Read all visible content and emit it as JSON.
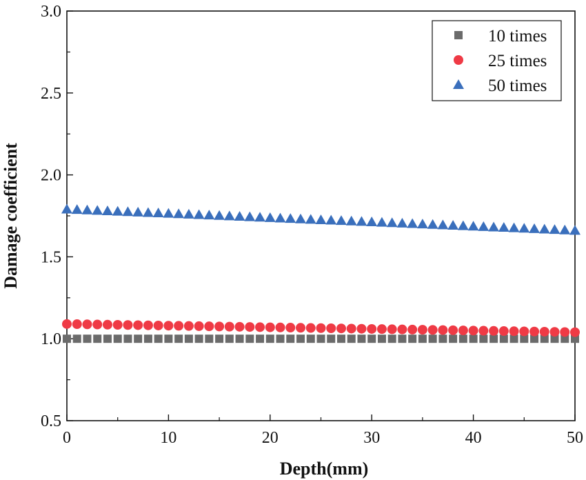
{
  "chart_data": {
    "type": "scatter",
    "title": "",
    "xlabel": "Depth(mm)",
    "ylabel": "Damage coefficient",
    "xlim": [
      0,
      50
    ],
    "ylim": [
      0.5,
      3.0
    ],
    "x_ticks": [
      0,
      10,
      20,
      30,
      40,
      50
    ],
    "x_tick_labels": [
      "0",
      "10",
      "20",
      "30",
      "40",
      "50"
    ],
    "y_ticks": [
      0.5,
      1.0,
      1.5,
      2.0,
      2.5,
      3.0
    ],
    "y_tick_labels": [
      "0.5",
      "1.0",
      "1.5",
      "2.0",
      "2.5",
      "3.0"
    ],
    "grid": false,
    "legend_position": "top-right",
    "x": [
      0,
      1,
      2,
      3,
      4,
      5,
      6,
      7,
      8,
      9,
      10,
      11,
      12,
      13,
      14,
      15,
      16,
      17,
      18,
      19,
      20,
      21,
      22,
      23,
      24,
      25,
      26,
      27,
      28,
      29,
      30,
      31,
      32,
      33,
      34,
      35,
      36,
      37,
      38,
      39,
      40,
      41,
      42,
      43,
      44,
      45,
      46,
      47,
      48,
      49,
      50
    ],
    "series": [
      {
        "name": "10 times",
        "marker": "square",
        "color": "#6b6b6b",
        "values": [
          1.0,
          1.0,
          1.0,
          1.0,
          1.0,
          1.0,
          1.0,
          1.0,
          1.0,
          1.0,
          1.0,
          1.0,
          1.0,
          1.0,
          1.0,
          1.0,
          1.0,
          1.0,
          1.0,
          1.0,
          1.0,
          1.0,
          1.0,
          1.0,
          1.0,
          1.0,
          1.0,
          1.0,
          1.0,
          1.0,
          1.0,
          1.0,
          1.0,
          1.0,
          1.0,
          1.0,
          1.0,
          1.0,
          1.0,
          1.0,
          1.0,
          1.0,
          1.0,
          1.0,
          1.0,
          1.0,
          1.0,
          1.0,
          1.0,
          1.0,
          1.0
        ]
      },
      {
        "name": "25 times",
        "marker": "circle",
        "color": "#ef3a45",
        "values": [
          1.09,
          1.089,
          1.088,
          1.087,
          1.086,
          1.085,
          1.084,
          1.083,
          1.082,
          1.081,
          1.08,
          1.079,
          1.078,
          1.077,
          1.076,
          1.075,
          1.074,
          1.073,
          1.072,
          1.071,
          1.07,
          1.069,
          1.068,
          1.067,
          1.066,
          1.065,
          1.064,
          1.063,
          1.062,
          1.061,
          1.06,
          1.059,
          1.058,
          1.057,
          1.056,
          1.055,
          1.054,
          1.053,
          1.052,
          1.051,
          1.05,
          1.049,
          1.048,
          1.047,
          1.046,
          1.045,
          1.044,
          1.043,
          1.042,
          1.041,
          1.04
        ]
      },
      {
        "name": "50 times",
        "marker": "triangle",
        "color": "#3a6fbc",
        "values": [
          1.79,
          1.7874,
          1.7848,
          1.7822,
          1.7796,
          1.777,
          1.7744,
          1.7718,
          1.7692,
          1.7666,
          1.764,
          1.7614,
          1.7588,
          1.7562,
          1.7536,
          1.751,
          1.7484,
          1.7458,
          1.7432,
          1.7406,
          1.738,
          1.7354,
          1.7328,
          1.7302,
          1.7276,
          1.725,
          1.7224,
          1.7198,
          1.7172,
          1.7146,
          1.712,
          1.7094,
          1.7068,
          1.7042,
          1.7016,
          1.699,
          1.6964,
          1.6938,
          1.6912,
          1.6886,
          1.686,
          1.6834,
          1.6808,
          1.6782,
          1.6756,
          1.673,
          1.6704,
          1.6678,
          1.6652,
          1.6626,
          1.66
        ]
      }
    ]
  }
}
